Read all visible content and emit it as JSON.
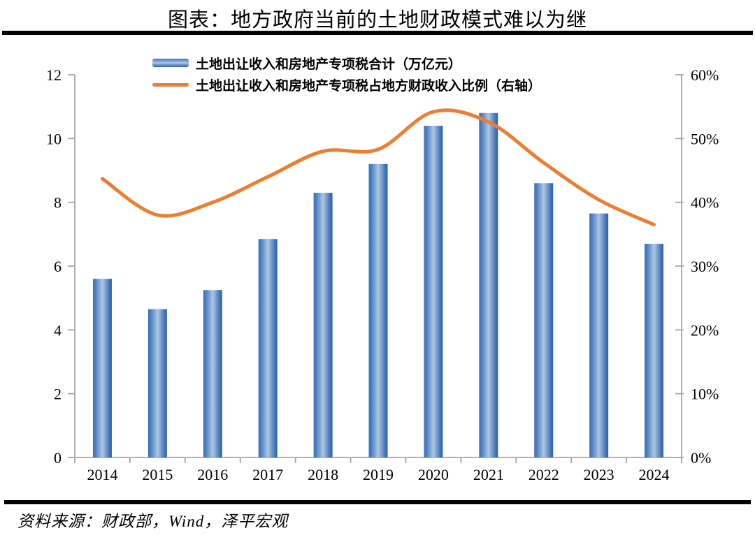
{
  "page": {
    "title": "图表：地方政府当前的土地财政模式难以为继",
    "source": "资料来源：财政部，Wind，泽平宏观"
  },
  "chart_data": {
    "type": "bar",
    "subtype": "vertical bars with smooth line overlay, dual y-axes",
    "title": "图表：地方政府当前的土地财政模式难以为继",
    "categories": [
      "2014",
      "2015",
      "2016",
      "2017",
      "2018",
      "2019",
      "2020",
      "2021",
      "2022",
      "2023",
      "2024"
    ],
    "series": [
      {
        "name": "土地出让收入和房地产专项税合计（万亿元）",
        "type": "bar",
        "axis": "left",
        "unit": "万亿元",
        "values": [
          5.6,
          4.65,
          5.25,
          6.85,
          8.3,
          9.2,
          10.4,
          10.8,
          8.6,
          7.65,
          6.7
        ]
      },
      {
        "name": "土地出让收入和房地产专项税占地方财政收入比例（右轴）",
        "type": "line",
        "axis": "right",
        "unit": "%",
        "values": [
          43.7,
          38.0,
          40.0,
          44.0,
          48.0,
          48.3,
          54.2,
          52.6,
          46.2,
          40.4,
          36.5
        ]
      }
    ],
    "left_axis": {
      "min": 0,
      "max": 12,
      "step": 2,
      "tick_labels": [
        "0",
        "2",
        "4",
        "6",
        "8",
        "10",
        "12"
      ]
    },
    "right_axis": {
      "min": 0,
      "max": 60,
      "step": 10,
      "tick_labels": [
        "0%",
        "10%",
        "20%",
        "30%",
        "40%",
        "50%",
        "60%"
      ]
    },
    "grid": false,
    "legend_position": "top, stacked vertically, left-aligned",
    "colors": {
      "bar_dark": "#2F65AF",
      "bar_mid_light": "#AEC6E2",
      "bar_edge": "#3D74BC",
      "line": "#ED7D31",
      "axis": "#A6A6A6",
      "divider": "#000000",
      "text": "#000000"
    }
  }
}
